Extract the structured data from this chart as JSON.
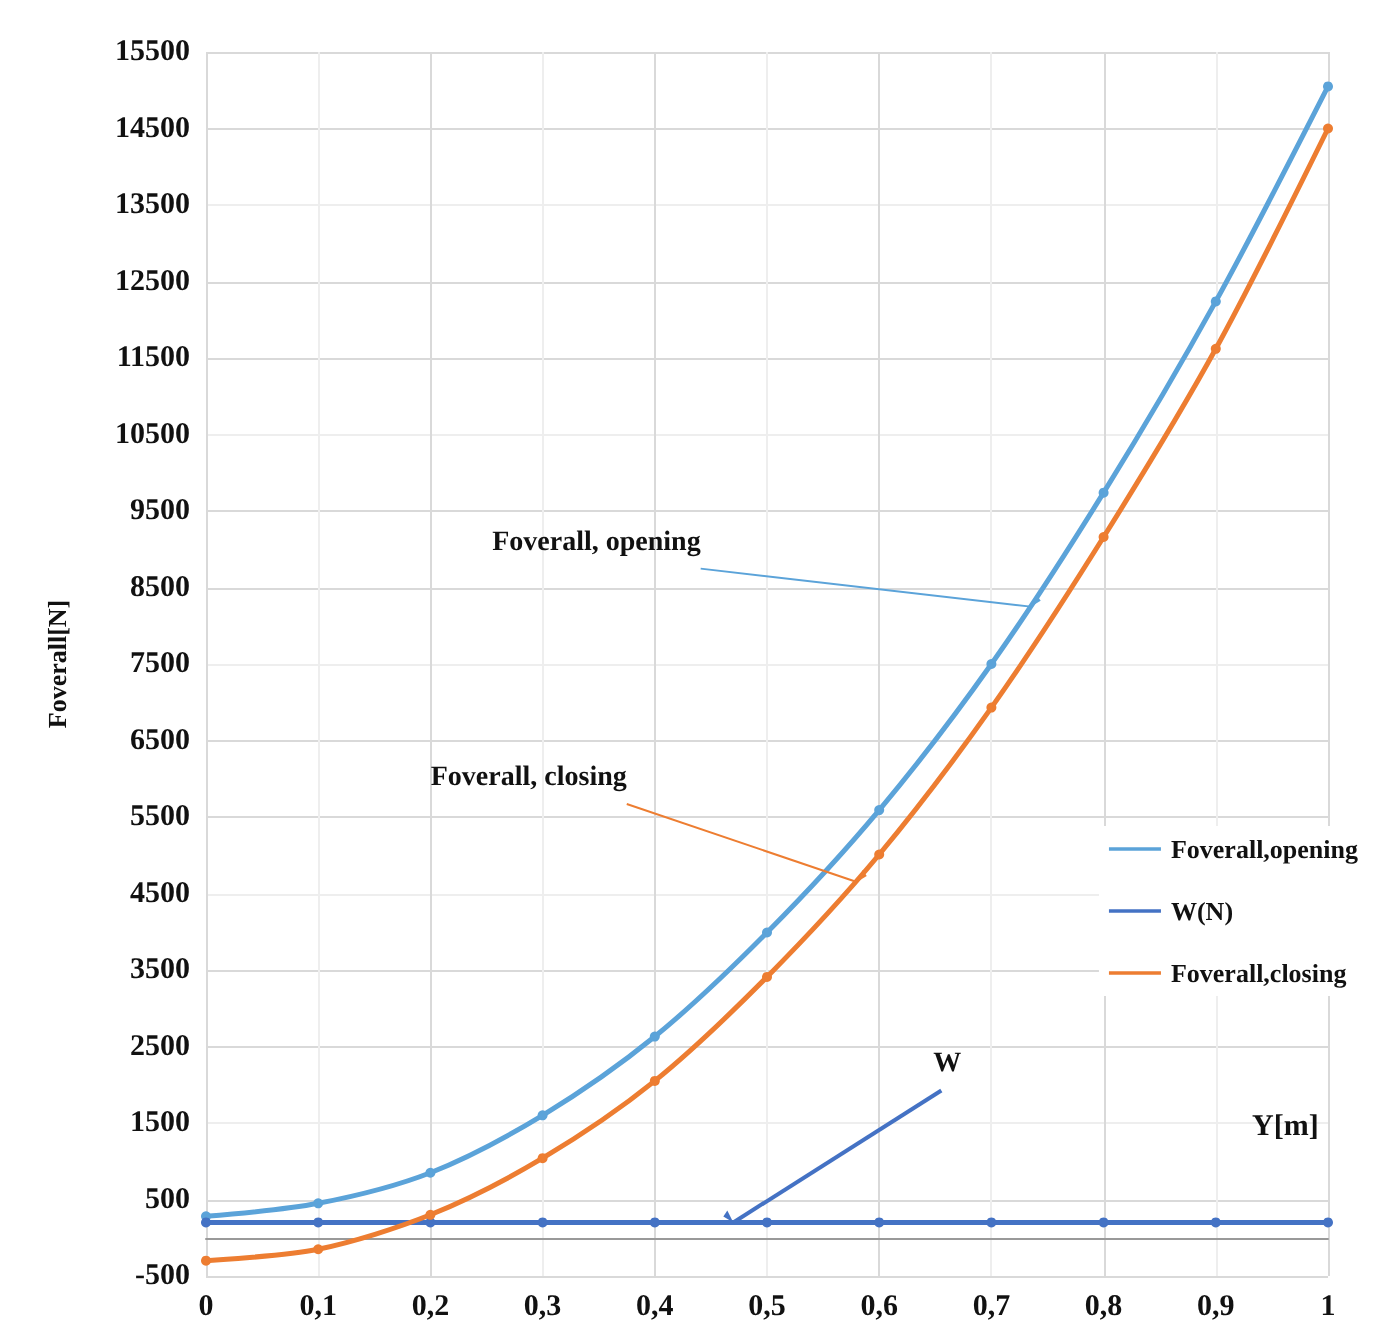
{
  "chart_data": {
    "type": "line",
    "xlabel": "Y[m]",
    "ylabel": "Foverall[N]",
    "x": [
      0,
      0.1,
      0.2,
      0.3,
      0.4,
      0.5,
      0.6,
      0.7,
      0.8,
      0.9,
      1
    ],
    "series": [
      {
        "name": "Foverall,opening",
        "color": "#5ba3d9",
        "values": [
          280,
          450,
          850,
          1600,
          2630,
          3990,
          5590,
          7500,
          9740,
          12240,
          15050
        ]
      },
      {
        "name": "W(N)",
        "color": "#4472c4",
        "values": [
          200,
          200,
          200,
          200,
          200,
          200,
          200,
          200,
          200,
          200,
          200
        ]
      },
      {
        "name": "Foverall,closing",
        "color": "#ed7d31",
        "values": [
          -300,
          -150,
          300,
          1040,
          2050,
          3410,
          5010,
          6930,
          9160,
          11620,
          14500
        ]
      }
    ],
    "xlim": [
      0,
      1
    ],
    "xticks": [
      0,
      {
        "value": 0.1,
        "label": "0,1"
      },
      {
        "value": 0.2,
        "label": "0,2"
      },
      {
        "value": 0.3,
        "label": "0,3"
      },
      {
        "value": 0.4,
        "label": "0,4"
      },
      {
        "value": 0.5,
        "label": "0,5"
      },
      {
        "value": 0.6,
        "label": "0,6"
      },
      {
        "value": 0.7,
        "label": "0,7"
      },
      {
        "value": 0.8,
        "label": "0,8"
      },
      {
        "value": 0.9,
        "label": "0,9"
      },
      1
    ],
    "ylim": [
      -500,
      15500
    ],
    "yticks": [
      -500,
      500,
      1500,
      2500,
      3500,
      4500,
      5500,
      6500,
      7500,
      8500,
      9500,
      10500,
      11500,
      12500,
      13500,
      14500,
      15500
    ],
    "annotations": [
      {
        "text": "Foverall, opening",
        "x": 0.735,
        "y": 8250
      },
      {
        "text": "Foverall, closing",
        "x": 0.58,
        "y": 4650
      },
      {
        "text": "W",
        "x": 0.47,
        "y": 200
      }
    ],
    "grid": true,
    "legend": "right",
    "marker": "circle",
    "line_style": "solid"
  }
}
